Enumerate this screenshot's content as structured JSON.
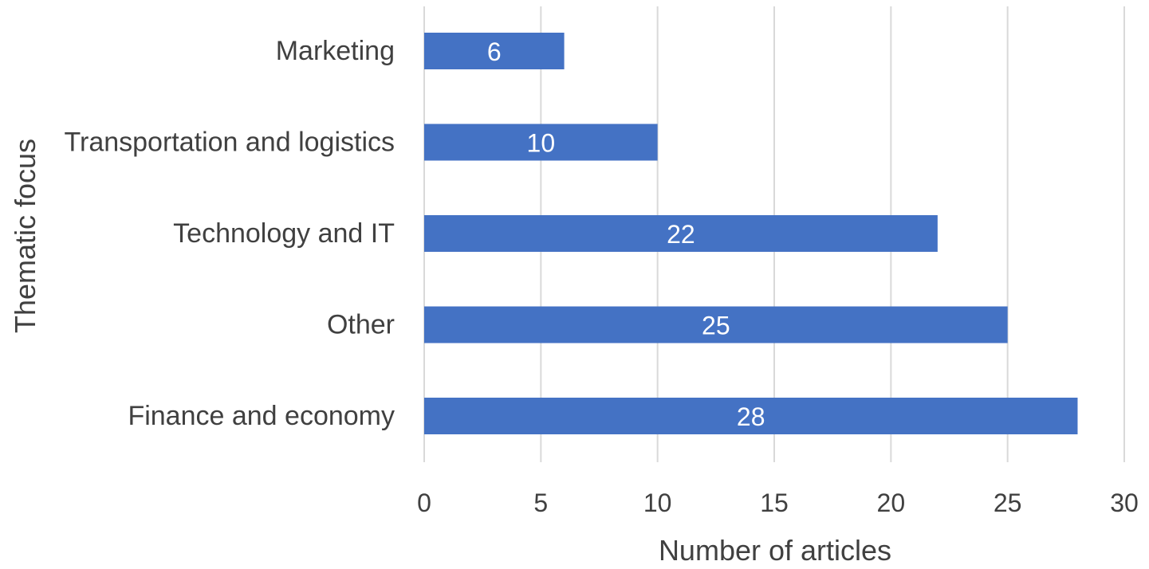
{
  "chart_data": {
    "type": "bar",
    "orientation": "horizontal",
    "title": "",
    "xlabel": "Number of articles",
    "ylabel": "Thematic focus",
    "categories": [
      "Marketing",
      "Transportation and logistics",
      "Technology and IT",
      "Other",
      "Finance and economy"
    ],
    "values": [
      6,
      10,
      22,
      25,
      28
    ],
    "xlim": [
      0,
      30
    ],
    "xticks": [
      0,
      5,
      10,
      15,
      20,
      25,
      30
    ],
    "grid": "vertical",
    "legend": "none",
    "bar_color": "#4472c4",
    "data_labels": true
  }
}
